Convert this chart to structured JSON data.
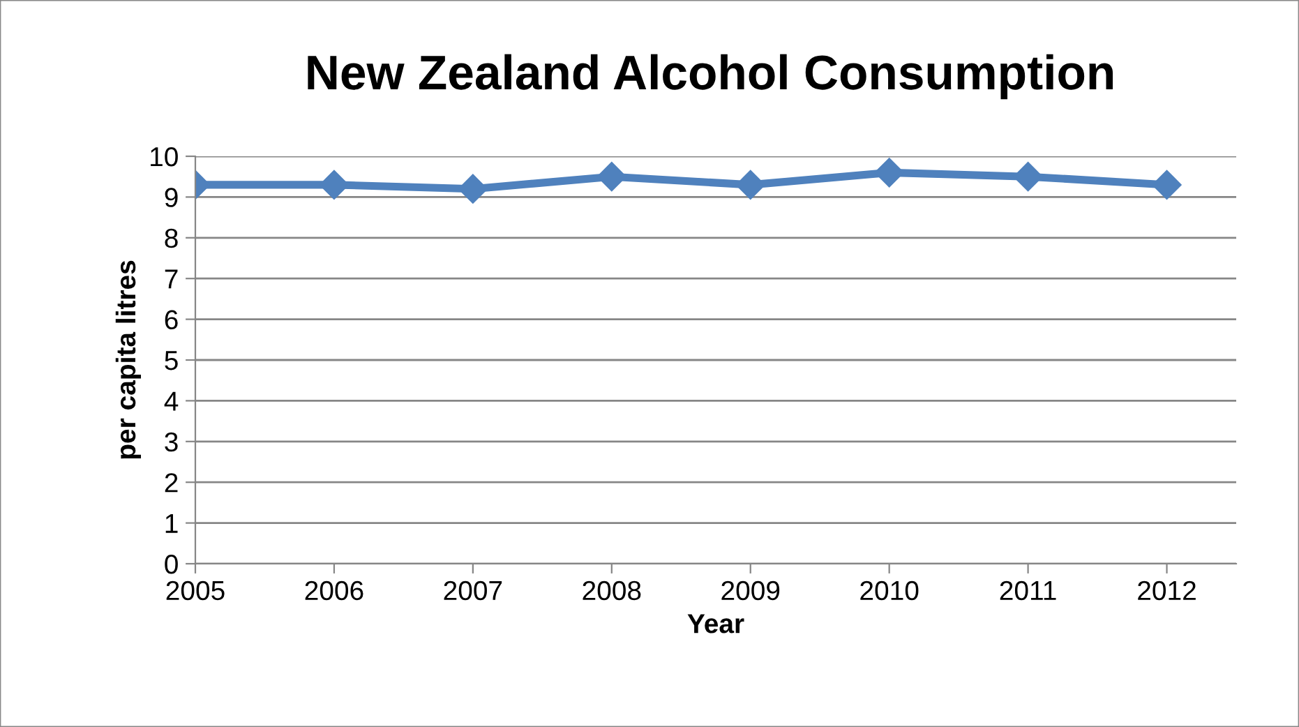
{
  "chart_data": {
    "type": "line",
    "title": "New Zealand Alcohol Consumption",
    "xlabel": "Year",
    "ylabel": "per capita litres",
    "categories": [
      "2005",
      "2006",
      "2007",
      "2008",
      "2009",
      "2010",
      "2011",
      "2012"
    ],
    "series": [
      {
        "color": "#4f81bd",
        "values": [
          9.3,
          9.3,
          9.2,
          9.5,
          9.3,
          9.6,
          9.5,
          9.3
        ]
      }
    ],
    "ylim": [
      0,
      10
    ],
    "yticks": [
      0,
      1,
      2,
      3,
      4,
      5,
      6,
      7,
      8,
      9,
      10
    ],
    "grid": "y",
    "marker": "diamond",
    "line_style": "solid",
    "legend": false
  }
}
